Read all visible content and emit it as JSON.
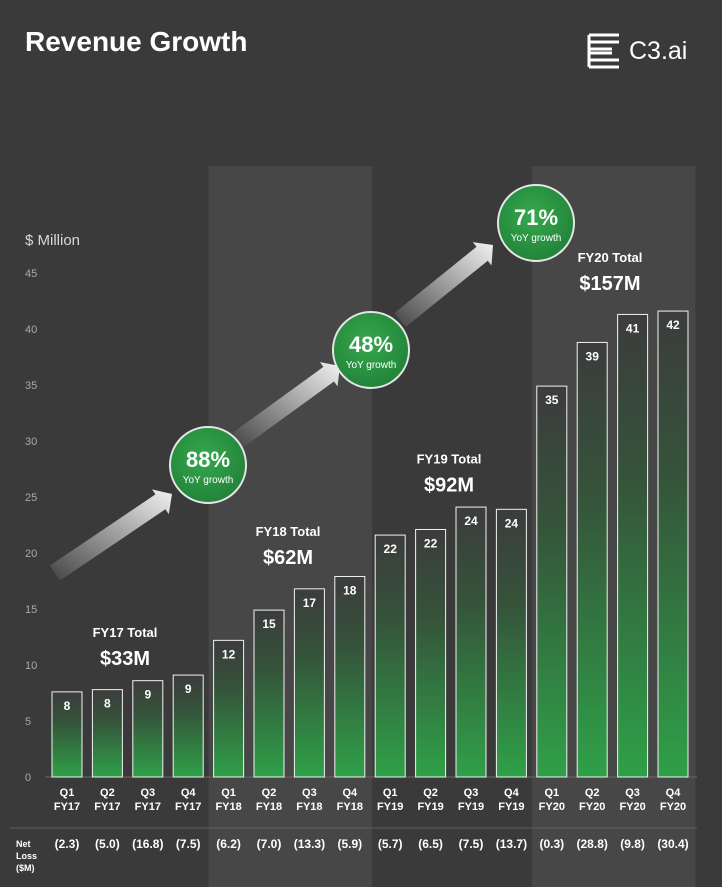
{
  "title": "Revenue Growth",
  "logo": {
    "text": "C3.ai",
    "icon": "c3-logo-icon"
  },
  "colors": {
    "background": "#3a3a3a",
    "band": "#474747",
    "bar_top": "#3a3a3a",
    "bar_bottom": "#2e9e48",
    "circle": "#2f9a45",
    "axis_text": "#a9a9a9"
  },
  "chart_data": {
    "type": "bar",
    "unit_label": "$ Million",
    "ylim": [
      0,
      45
    ],
    "yticks": [
      0,
      5,
      10,
      15,
      20,
      25,
      30,
      35,
      40,
      45
    ],
    "categories": [
      {
        "q": "Q1",
        "fy": "FY17"
      },
      {
        "q": "Q2",
        "fy": "FY17"
      },
      {
        "q": "Q3",
        "fy": "FY17"
      },
      {
        "q": "Q4",
        "fy": "FY17"
      },
      {
        "q": "Q1",
        "fy": "FY18"
      },
      {
        "q": "Q2",
        "fy": "FY18"
      },
      {
        "q": "Q3",
        "fy": "FY18"
      },
      {
        "q": "Q4",
        "fy": "FY18"
      },
      {
        "q": "Q1",
        "fy": "FY19"
      },
      {
        "q": "Q2",
        "fy": "FY19"
      },
      {
        "q": "Q3",
        "fy": "FY19"
      },
      {
        "q": "Q4",
        "fy": "FY19"
      },
      {
        "q": "Q1",
        "fy": "FY20"
      },
      {
        "q": "Q2",
        "fy": "FY20"
      },
      {
        "q": "Q3",
        "fy": "FY20"
      },
      {
        "q": "Q4",
        "fy": "FY20"
      }
    ],
    "values": [
      7.6,
      7.8,
      8.6,
      9.1,
      12.2,
      14.9,
      16.8,
      17.9,
      21.6,
      22.1,
      24.1,
      23.9,
      34.9,
      38.8,
      41.3,
      41.6
    ],
    "value_labels": [
      "8",
      "8",
      "9",
      "9",
      "12",
      "15",
      "17",
      "18",
      "22",
      "22",
      "24",
      "24",
      "35",
      "39",
      "41",
      "42"
    ],
    "net_loss_label": [
      "Net",
      "Loss",
      "($M)"
    ],
    "net_loss": [
      "(2.3)",
      "(5.0)",
      "(16.8)",
      "(7.5)",
      "(6.2)",
      "(7.0)",
      "(13.3)",
      "(5.9)",
      "(5.7)",
      "(6.5)",
      "(7.5)",
      "(13.7)",
      "(0.3)",
      "(28.8)",
      "(9.8)",
      "(30.4)"
    ],
    "fy_totals": [
      {
        "label": "FY17 Total",
        "value": "$33M",
        "y": 12.5
      },
      {
        "label": "FY18 Total",
        "value": "$62M",
        "y": 21.5
      },
      {
        "label": "FY19 Total",
        "value": "$92M",
        "y": 28.0
      },
      {
        "label": "FY20 Total",
        "value": "$157M",
        "y": 46.0
      }
    ],
    "yoy_growth": [
      {
        "pct": "88%",
        "label": "YoY growth"
      },
      {
        "pct": "48%",
        "label": "YoY growth"
      },
      {
        "pct": "71%",
        "label": "YoY growth"
      }
    ],
    "shaded_fiscal_years": [
      "FY18",
      "FY20"
    ]
  }
}
